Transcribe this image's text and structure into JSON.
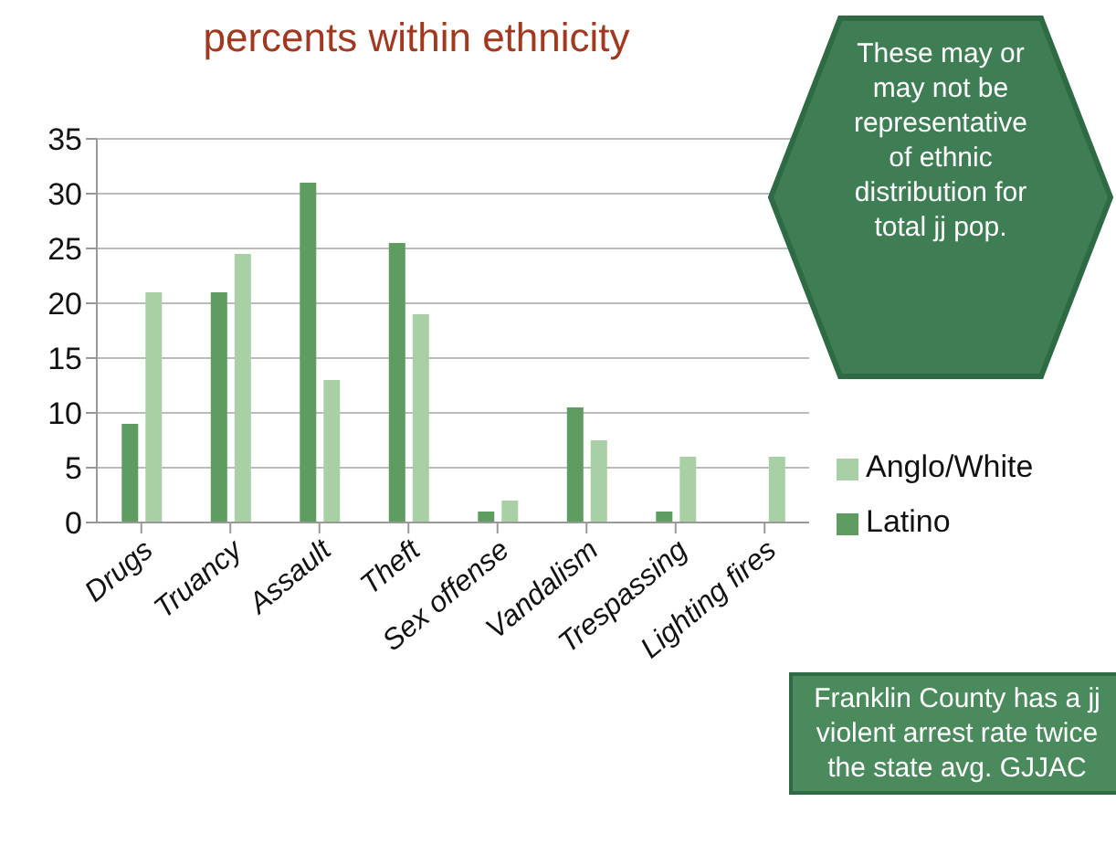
{
  "chart_data": {
    "type": "bar",
    "title": "percents within ethnicity",
    "categories": [
      "Drugs",
      "Truancy",
      "Assault",
      "Theft",
      "Sex offense",
      "Vandalism",
      "Trespassing",
      "Lighting fires"
    ],
    "series": [
      {
        "name": "Latino",
        "color": "#5e9c62",
        "values": [
          9,
          21,
          31,
          25.5,
          1,
          10.5,
          1,
          0
        ]
      },
      {
        "name": "Anglo/White",
        "color": "#a9cfa5",
        "values": [
          21,
          24.5,
          13,
          19,
          2,
          7.5,
          6,
          6
        ]
      }
    ],
    "ylim": [
      0,
      35
    ],
    "yticks": [
      0,
      5,
      10,
      15,
      20,
      25,
      30,
      35
    ],
    "grid": "y",
    "legend": "right",
    "annotations": [
      "These may or may not be representative of ethnic distribution for total jj pop.",
      "Franklin County has a jj violent arrest rate twice the state avg. GJJAC"
    ]
  }
}
